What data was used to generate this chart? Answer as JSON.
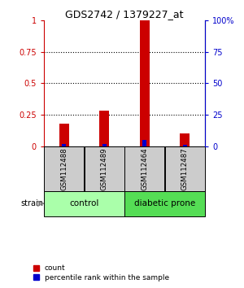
{
  "title": "GDS2742 / 1379227_at",
  "samples": [
    "GSM112488",
    "GSM112489",
    "GSM112464",
    "GSM112487"
  ],
  "red_values": [
    0.18,
    0.28,
    1.0,
    0.1
  ],
  "blue_values": [
    2,
    2,
    5,
    1
  ],
  "groups": [
    {
      "label": "control",
      "indices": [
        0,
        1
      ],
      "color": "#aaffaa"
    },
    {
      "label": "diabetic prone",
      "indices": [
        2,
        3
      ],
      "color": "#55dd55"
    }
  ],
  "strain_label": "strain",
  "ylim_left": [
    0,
    1.0
  ],
  "ylim_right": [
    0,
    100
  ],
  "yticks_left": [
    0,
    0.25,
    0.5,
    0.75,
    1.0
  ],
  "yticks_right": [
    0,
    25,
    50,
    75,
    100
  ],
  "yticklabels_left": [
    "0",
    "0.25",
    "0.5",
    "0.75",
    "1"
  ],
  "yticklabels_right": [
    "0",
    "25",
    "50",
    "75",
    "100%"
  ],
  "red_color": "#cc0000",
  "blue_color": "#0000cc",
  "red_bar_width": 0.25,
  "blue_bar_width": 0.1,
  "sample_box_color": "#cccccc",
  "legend_red": "count",
  "legend_blue": "percentile rank within the sample"
}
